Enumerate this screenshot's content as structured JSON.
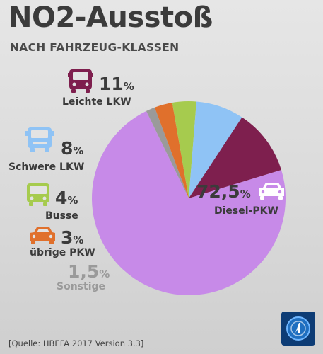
{
  "header": {
    "title": "NO2-Ausstoß",
    "subtitle": "NACH FAHRZEUG-KLASSEN"
  },
  "source": "[Quelle: HBEFA 2017 Version 3.3]",
  "chart_data": {
    "type": "pie",
    "title": "NO2-Ausstoß",
    "subtitle": "NACH FAHRZEUG-KLASSEN",
    "unit": "%",
    "slices": [
      {
        "label": "Diesel-PKW",
        "value": 72.5,
        "display": "72,5",
        "color": "#c78ae8",
        "icon": "car-icon"
      },
      {
        "label": "Sonstige",
        "value": 1.5,
        "display": "1,5",
        "color": "#9a9a9a",
        "icon": ""
      },
      {
        "label": "übrige PKW",
        "value": 3,
        "display": "3",
        "color": "#e0702c",
        "icon": "car-icon"
      },
      {
        "label": "Busse",
        "value": 4,
        "display": "4",
        "color": "#a6cb4e",
        "icon": "bus-icon"
      },
      {
        "label": "Schwere LKW",
        "value": 8,
        "display": "8",
        "color": "#8fc3f5",
        "icon": "heavy-truck-icon"
      },
      {
        "label": "Leichte LKW",
        "value": 11,
        "display": "11",
        "color": "#7e1f4e",
        "icon": "light-truck-icon"
      }
    ]
  }
}
